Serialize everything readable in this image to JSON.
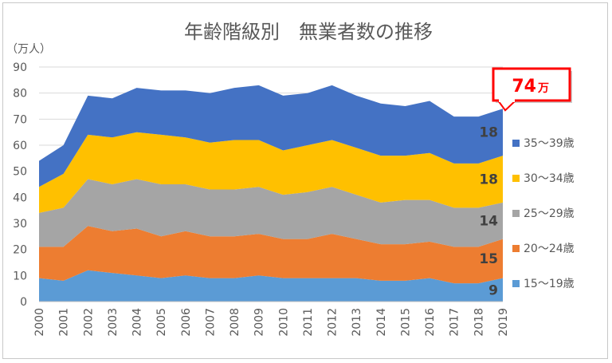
{
  "chart_data": {
    "type": "area",
    "stacked": true,
    "title": "年齢階級別　無業者数の推移",
    "unit_label": "（万人）",
    "x": [
      "2000",
      "2001",
      "2002",
      "2003",
      "2004",
      "2005",
      "2006",
      "2007",
      "2008",
      "2009",
      "2010",
      "2011",
      "2012",
      "2013",
      "2014",
      "2015",
      "2016",
      "2017",
      "2018",
      "2019"
    ],
    "ylim": [
      0,
      90
    ],
    "yticks": [
      0,
      10,
      20,
      30,
      40,
      50,
      60,
      70,
      80,
      90
    ],
    "grid": true,
    "legend_position": "right",
    "series": [
      {
        "name": "15～19歳",
        "color": "#5b9bd5",
        "values": [
          9,
          8,
          12,
          11,
          10,
          9,
          10,
          9,
          9,
          10,
          9,
          9,
          9,
          9,
          8,
          8,
          9,
          7,
          7,
          9
        ]
      },
      {
        "name": "20～24歳",
        "color": "#ed7d31",
        "values": [
          12,
          13,
          17,
          16,
          18,
          16,
          17,
          16,
          16,
          16,
          15,
          15,
          17,
          15,
          14,
          14,
          14,
          14,
          14,
          15
        ]
      },
      {
        "name": "25～29歳",
        "color": "#a5a5a5",
        "values": [
          13,
          15,
          18,
          18,
          19,
          20,
          18,
          18,
          18,
          18,
          17,
          18,
          18,
          17,
          16,
          17,
          16,
          15,
          15,
          14
        ]
      },
      {
        "name": "30～34歳",
        "color": "#ffc000",
        "values": [
          10,
          13,
          17,
          18,
          18,
          19,
          18,
          18,
          19,
          18,
          17,
          18,
          18,
          18,
          18,
          17,
          18,
          17,
          17,
          18
        ]
      },
      {
        "name": "35～39歳",
        "color": "#4472c4",
        "values": [
          10,
          11,
          15,
          15,
          17,
          17,
          18,
          19,
          20,
          21,
          21,
          20,
          21,
          20,
          20,
          19,
          20,
          18,
          18,
          18
        ]
      }
    ],
    "end_labels": [
      {
        "series": "15～19歳",
        "text": "9"
      },
      {
        "series": "20～24歳",
        "text": "15"
      },
      {
        "series": "25～29歳",
        "text": "14"
      },
      {
        "series": "30～34歳",
        "text": "18"
      },
      {
        "series": "35～39歳",
        "text": "18"
      }
    ],
    "callout": {
      "value": "74",
      "unit": "万",
      "border_color": "#ff0000"
    }
  }
}
